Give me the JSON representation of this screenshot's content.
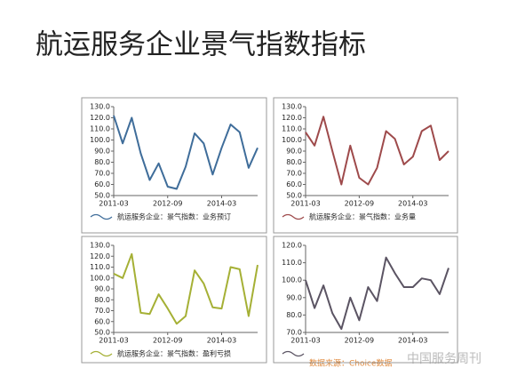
{
  "slide_title": "航运服务企业景气指数指标",
  "source": "数据来源：Choice数据",
  "watermark": "中国服务周刊",
  "chart_data": [
    {
      "type": "line",
      "categories": [
        "2011-03",
        null,
        null,
        null,
        null,
        null,
        "2012-09",
        null,
        null,
        null,
        null,
        null,
        "2014-03",
        null,
        null,
        null,
        null
      ],
      "series": [
        {
          "name": "航运服务企业：景气指数：业务预订",
          "color": "#3f6d9a",
          "values": [
            122,
            97,
            120,
            88,
            64,
            79,
            58,
            56,
            76,
            106,
            97,
            69,
            93,
            114,
            107,
            75,
            93
          ]
        }
      ],
      "ylim": [
        50,
        130
      ],
      "yticks": [
        {
          "value": 50,
          "label": "50.0"
        },
        {
          "value": 60,
          "label": "60.0"
        },
        {
          "value": 70,
          "label": "70.0"
        },
        {
          "value": 80,
          "label": "80.0"
        },
        {
          "value": 90,
          "label": "90.0"
        },
        {
          "value": 100,
          "label": "100.0"
        },
        {
          "value": 110,
          "label": "110.0"
        },
        {
          "value": 120,
          "label": "120.0"
        },
        {
          "value": 130,
          "label": "130.0"
        }
      ]
    },
    {
      "type": "line",
      "categories": [
        "2011-03",
        null,
        null,
        null,
        null,
        null,
        "2012-09",
        null,
        null,
        null,
        null,
        null,
        "2014-03",
        null,
        null,
        null,
        null
      ],
      "series": [
        {
          "name": "航运服务企业：景气指数：业务量",
          "color": "#9e4a4b",
          "values": [
            107,
            95,
            121,
            90,
            60,
            95,
            66,
            60,
            75,
            108,
            101,
            78,
            85,
            108,
            113,
            82,
            90
          ]
        }
      ],
      "ylim": [
        50,
        130
      ],
      "yticks": [
        {
          "value": 50,
          "label": "50.0"
        },
        {
          "value": 60,
          "label": "60.0"
        },
        {
          "value": 70,
          "label": "70.0"
        },
        {
          "value": 80,
          "label": "80.0"
        },
        {
          "value": 90,
          "label": "90.0"
        },
        {
          "value": 100,
          "label": "100.0"
        },
        {
          "value": 110,
          "label": "110.0"
        },
        {
          "value": 120,
          "label": "120.0"
        },
        {
          "value": 130,
          "label": "130.0"
        }
      ]
    },
    {
      "type": "line",
      "categories": [
        "2011-03",
        null,
        null,
        null,
        null,
        null,
        "2012-09",
        null,
        null,
        null,
        null,
        null,
        "2014-03",
        null,
        null,
        null,
        null
      ],
      "series": [
        {
          "name": "航运服务企业：景气指数：盈利亏损",
          "color": "#a5b035",
          "values": [
            104,
            100,
            122,
            68,
            67,
            85,
            72,
            58,
            65,
            107,
            95,
            73,
            72,
            110,
            108,
            65,
            112
          ]
        }
      ],
      "ylim": [
        50,
        130
      ],
      "yticks": [
        {
          "value": 50,
          "label": "50.0"
        },
        {
          "value": 60,
          "label": "60.0"
        },
        {
          "value": 70,
          "label": "70.0"
        },
        {
          "value": 80,
          "label": "80.0"
        },
        {
          "value": 90,
          "label": "90.0"
        },
        {
          "value": 100,
          "label": "100.0"
        },
        {
          "value": 110,
          "label": "110.0"
        },
        {
          "value": 120,
          "label": "120.0"
        },
        {
          "value": 130,
          "label": "130.0"
        }
      ]
    },
    {
      "type": "line",
      "categories": [
        "2011-03",
        null,
        null,
        null,
        null,
        null,
        "2012-09",
        null,
        null,
        null,
        null,
        null,
        "2014-03",
        null,
        null,
        null,
        null
      ],
      "series": [
        {
          "color": "#5b5463",
          "values": [
            100,
            84,
            97,
            81,
            72,
            90,
            77,
            96,
            88,
            113,
            104,
            96,
            96,
            101,
            100,
            92,
            107
          ]
        }
      ],
      "ylim": [
        70,
        120
      ],
      "yticks": [
        {
          "value": 70,
          "label": "70.0"
        },
        {
          "value": 80,
          "label": "80.0"
        },
        {
          "value": 90,
          "label": "90.0"
        },
        {
          "value": 100,
          "label": "100.0"
        },
        {
          "value": 110,
          "label": "110.0"
        },
        {
          "value": 120,
          "label": "120.0"
        }
      ]
    }
  ]
}
